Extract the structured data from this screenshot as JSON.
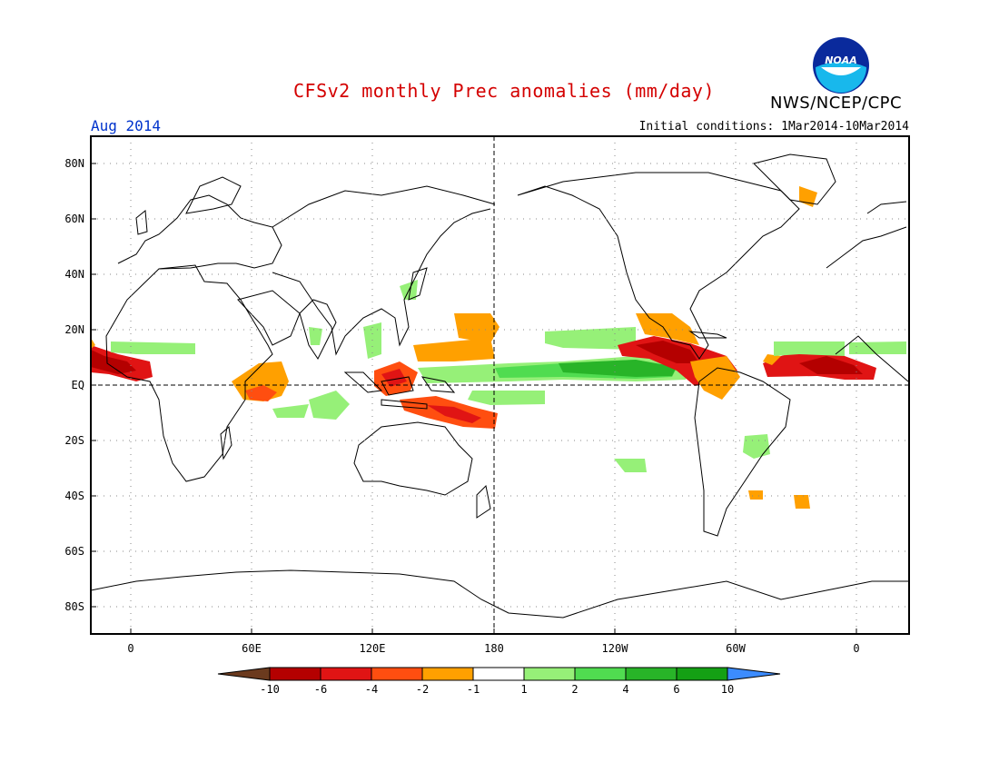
{
  "header": {
    "title": "CFSv2 monthly Prec anomalies (mm/day)",
    "org": "NWS/NCEP/CPC",
    "month": "Aug 2014",
    "initial_conditions": "Initial conditions: 1Mar2014-10Mar2014",
    "logo_text": "NOAA"
  },
  "map": {
    "lat_labels": [
      "80N",
      "60N",
      "40N",
      "20N",
      "EQ",
      "20S",
      "40S",
      "60S",
      "80S"
    ],
    "lon_labels": [
      "0",
      "60E",
      "120E",
      "180",
      "120W",
      "60W",
      "0"
    ]
  },
  "colorbar": {
    "labels": [
      "-10",
      "-6",
      "-4",
      "-2",
      "-1",
      "1",
      "2",
      "4",
      "6",
      "10"
    ],
    "colors": [
      "#6b3a1e",
      "#b40000",
      "#e01414",
      "#ff4e10",
      "#ffa000",
      "#ffffff",
      "#96f078",
      "#50dc50",
      "#28b428",
      "#14a014",
      "#3c8cff"
    ]
  }
}
